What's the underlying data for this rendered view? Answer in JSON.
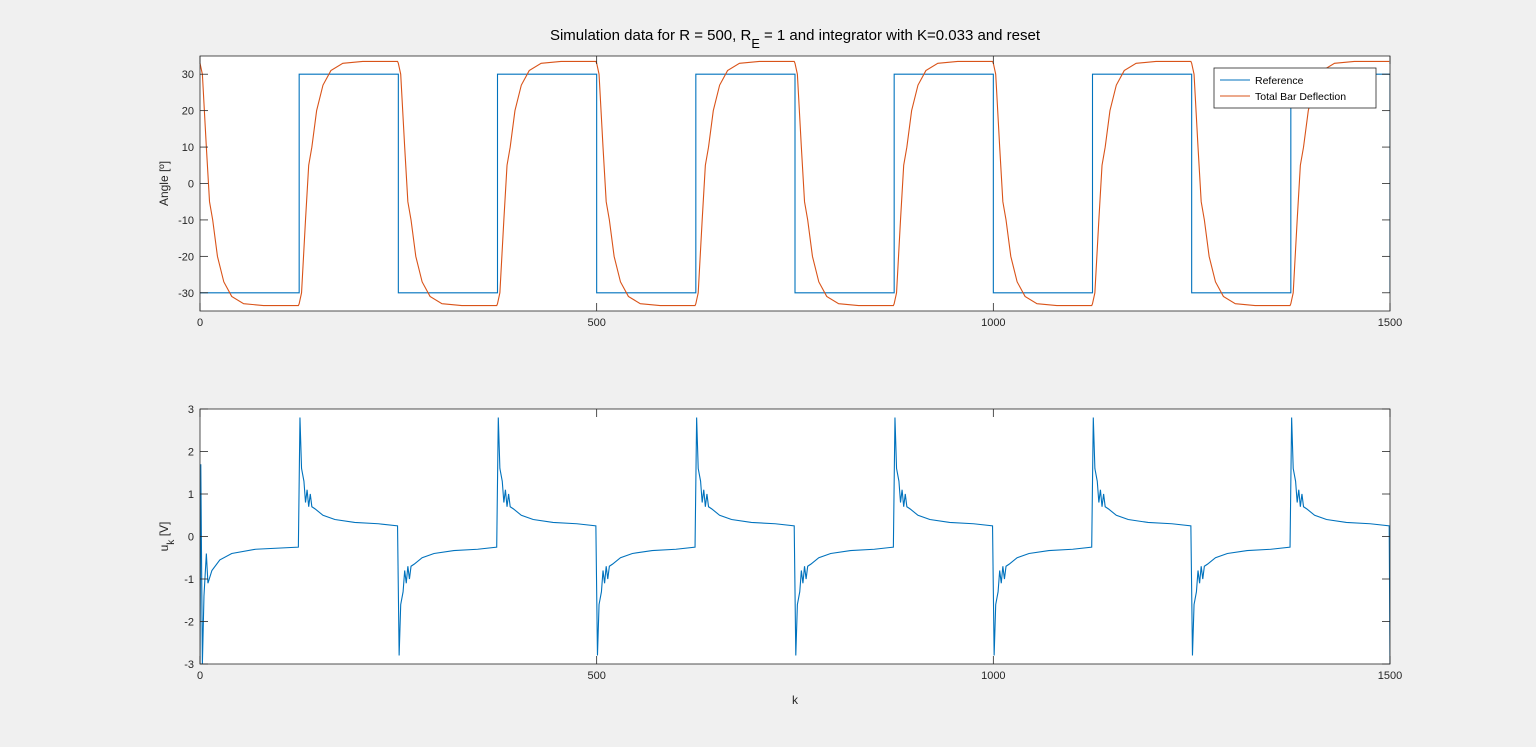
{
  "chart_data": [
    {
      "type": "line",
      "title": [
        "Simulation data for R = 500, R",
        "E",
        " = 1 and integrator with K=0.033 and reset"
      ],
      "ylabel": "Angle [º]",
      "xlim": [
        0,
        1500
      ],
      "ylim": [
        -35,
        35
      ],
      "xticks": [
        0,
        500,
        1000,
        1500
      ],
      "yticks": [
        -30,
        -20,
        -10,
        0,
        10,
        20,
        30
      ],
      "grid": false,
      "legend": "northeast",
      "series": [
        {
          "name": "Reference",
          "color": "#0072BD",
          "x": [
            0,
            125,
            125,
            250,
            250,
            375,
            375,
            500,
            500,
            625,
            625,
            750,
            750,
            875,
            875,
            1000,
            1000,
            1125,
            1125,
            1250,
            1250,
            1375,
            1375,
            1500,
            1500
          ],
          "values": [
            -30,
            -30,
            30,
            30,
            -30,
            -30,
            30,
            30,
            -30,
            -30,
            30,
            30,
            -30,
            -30,
            30,
            30,
            -30,
            -30,
            30,
            30,
            -30,
            -30,
            30,
            30,
            -30
          ]
        },
        {
          "name": "Total Bar Deflection",
          "color": "#D95319",
          "x": [
            0,
            3,
            8,
            12,
            16,
            22,
            30,
            40,
            55,
            80,
            124,
            125,
            128,
            133,
            137,
            141,
            147,
            155,
            165,
            180,
            205,
            249,
            250,
            253,
            258,
            262,
            266,
            272,
            280,
            290,
            305,
            330,
            374,
            375,
            378,
            383,
            387,
            391,
            397,
            405,
            415,
            430,
            455,
            499,
            500,
            503,
            508,
            512,
            516,
            522,
            530,
            540,
            555,
            580,
            624,
            625,
            628,
            633,
            637,
            641,
            647,
            655,
            665,
            680,
            705,
            749,
            750,
            753,
            758,
            762,
            766,
            772,
            780,
            790,
            805,
            830,
            874,
            875,
            878,
            883,
            887,
            891,
            897,
            905,
            915,
            930,
            955,
            999,
            1000,
            1003,
            1008,
            1012,
            1016,
            1022,
            1030,
            1040,
            1055,
            1080,
            1124,
            1125,
            1128,
            1133,
            1137,
            1141,
            1147,
            1155,
            1165,
            1180,
            1205,
            1249,
            1250,
            1253,
            1258,
            1262,
            1266,
            1272,
            1280,
            1290,
            1305,
            1330,
            1374,
            1375,
            1378,
            1383,
            1387,
            1391,
            1397,
            1405,
            1415,
            1430,
            1455,
            1499
          ],
          "values": [
            33,
            30,
            10,
            -5,
            -10,
            -20,
            -27,
            -31,
            -33,
            -33.5,
            -33.5,
            -33,
            -30,
            -10,
            5,
            10,
            20,
            27,
            31,
            33,
            33.5,
            33.5,
            33,
            30,
            10,
            -5,
            -10,
            -20,
            -27,
            -31,
            -33,
            -33.5,
            -33.5,
            -33,
            -30,
            -10,
            5,
            10,
            20,
            27,
            31,
            33,
            33.5,
            33.5,
            33,
            30,
            10,
            -5,
            -10,
            -20,
            -27,
            -31,
            -33,
            -33.5,
            -33.5,
            -33,
            -30,
            -10,
            5,
            10,
            20,
            27,
            31,
            33,
            33.5,
            33.5,
            33,
            30,
            10,
            -5,
            -10,
            -20,
            -27,
            -31,
            -33,
            -33.5,
            -33.5,
            -33,
            -30,
            -10,
            5,
            10,
            20,
            27,
            31,
            33,
            33.5,
            33.5,
            33,
            30,
            10,
            -5,
            -10,
            -20,
            -27,
            -31,
            -33,
            -33.5,
            -33.5,
            -33,
            -30,
            -10,
            5,
            10,
            20,
            27,
            31,
            33,
            33.5,
            33.5,
            33,
            30,
            10,
            -5,
            -10,
            -20,
            -27,
            -31,
            -33,
            -33.5,
            -33.5,
            -33,
            -30,
            -10,
            5,
            10,
            20,
            27,
            31,
            33,
            33.5,
            33.5
          ]
        }
      ]
    },
    {
      "type": "line",
      "ylabel": [
        "u",
        "k",
        " [V]"
      ],
      "xlabel": "k",
      "xlim": [
        0,
        1500
      ],
      "ylim": [
        -3,
        3
      ],
      "xticks": [
        0,
        500,
        1000,
        1500
      ],
      "yticks": [
        -3,
        -2,
        -1,
        0,
        1,
        2,
        3
      ],
      "grid": false,
      "series": [
        {
          "color": "#0072BD",
          "x": [
            0,
            1,
            3,
            5,
            8,
            10,
            15,
            25,
            40,
            70,
            124,
            126,
            128,
            131,
            133,
            135,
            137,
            139,
            141,
            145,
            155,
            170,
            195,
            225,
            249,
            251,
            253,
            256,
            258,
            260,
            262,
            264,
            266,
            270,
            280,
            295,
            320,
            350,
            374,
            376,
            378,
            381,
            383,
            385,
            387,
            389,
            391,
            395,
            405,
            420,
            445,
            475,
            499,
            501,
            503,
            506,
            508,
            510,
            512,
            514,
            516,
            520,
            530,
            545,
            570,
            600,
            624,
            626,
            628,
            631,
            633,
            635,
            637,
            639,
            641,
            645,
            655,
            670,
            695,
            725,
            749,
            751,
            753,
            756,
            758,
            760,
            762,
            764,
            766,
            770,
            780,
            795,
            820,
            850,
            874,
            876,
            878,
            881,
            883,
            885,
            887,
            889,
            891,
            895,
            905,
            920,
            945,
            975,
            999,
            1001,
            1003,
            1006,
            1008,
            1010,
            1012,
            1014,
            1016,
            1020,
            1030,
            1045,
            1070,
            1100,
            1124,
            1126,
            1128,
            1131,
            1133,
            1135,
            1137,
            1139,
            1141,
            1145,
            1155,
            1170,
            1195,
            1225,
            1249,
            1251,
            1253,
            1256,
            1258,
            1260,
            1262,
            1264,
            1266,
            1270,
            1280,
            1295,
            1320,
            1350,
            1374,
            1376,
            1378,
            1381,
            1383,
            1385,
            1387,
            1389,
            1391,
            1395,
            1405,
            1420,
            1445,
            1475,
            1499,
            1500
          ],
          "values": [
            -3,
            1.7,
            -3,
            -1.4,
            -0.4,
            -1.1,
            -0.8,
            -0.55,
            -0.4,
            -0.3,
            -0.25,
            2.8,
            1.6,
            1.3,
            0.8,
            1.1,
            0.7,
            1.0,
            0.7,
            0.65,
            0.5,
            0.4,
            0.33,
            0.3,
            0.25,
            -2.8,
            -1.6,
            -1.3,
            -0.8,
            -1.1,
            -0.7,
            -1.0,
            -0.7,
            -0.65,
            -0.5,
            -0.4,
            -0.33,
            -0.3,
            -0.25,
            2.8,
            1.6,
            1.3,
            0.8,
            1.1,
            0.7,
            1.0,
            0.7,
            0.65,
            0.5,
            0.4,
            0.33,
            0.3,
            0.25,
            -2.8,
            -1.6,
            -1.3,
            -0.8,
            -1.1,
            -0.7,
            -1.0,
            -0.7,
            -0.65,
            -0.5,
            -0.4,
            -0.33,
            -0.3,
            -0.25,
            2.8,
            1.6,
            1.3,
            0.8,
            1.1,
            0.7,
            1.0,
            0.7,
            0.65,
            0.5,
            0.4,
            0.33,
            0.3,
            0.25,
            -2.8,
            -1.6,
            -1.3,
            -0.8,
            -1.1,
            -0.7,
            -1.0,
            -0.7,
            -0.65,
            -0.5,
            -0.4,
            -0.33,
            -0.3,
            -0.25,
            2.8,
            1.6,
            1.3,
            0.8,
            1.1,
            0.7,
            1.0,
            0.7,
            0.65,
            0.5,
            0.4,
            0.33,
            0.3,
            0.25,
            -2.8,
            -1.6,
            -1.3,
            -0.8,
            -1.1,
            -0.7,
            -1.0,
            -0.7,
            -0.65,
            -0.5,
            -0.4,
            -0.33,
            -0.3,
            -0.25,
            2.8,
            1.6,
            1.3,
            0.8,
            1.1,
            0.7,
            1.0,
            0.7,
            0.65,
            0.5,
            0.4,
            0.33,
            0.3,
            0.25,
            -2.8,
            -1.6,
            -1.3,
            -0.8,
            -1.1,
            -0.7,
            -1.0,
            -0.7,
            -0.65,
            -0.5,
            -0.4,
            -0.33,
            -0.3,
            -0.25,
            2.8,
            1.6,
            1.3,
            0.8,
            1.1,
            0.7,
            1.0,
            0.7,
            0.65,
            0.5,
            0.4,
            0.33,
            0.3,
            0.25,
            -3
          ]
        }
      ]
    }
  ]
}
